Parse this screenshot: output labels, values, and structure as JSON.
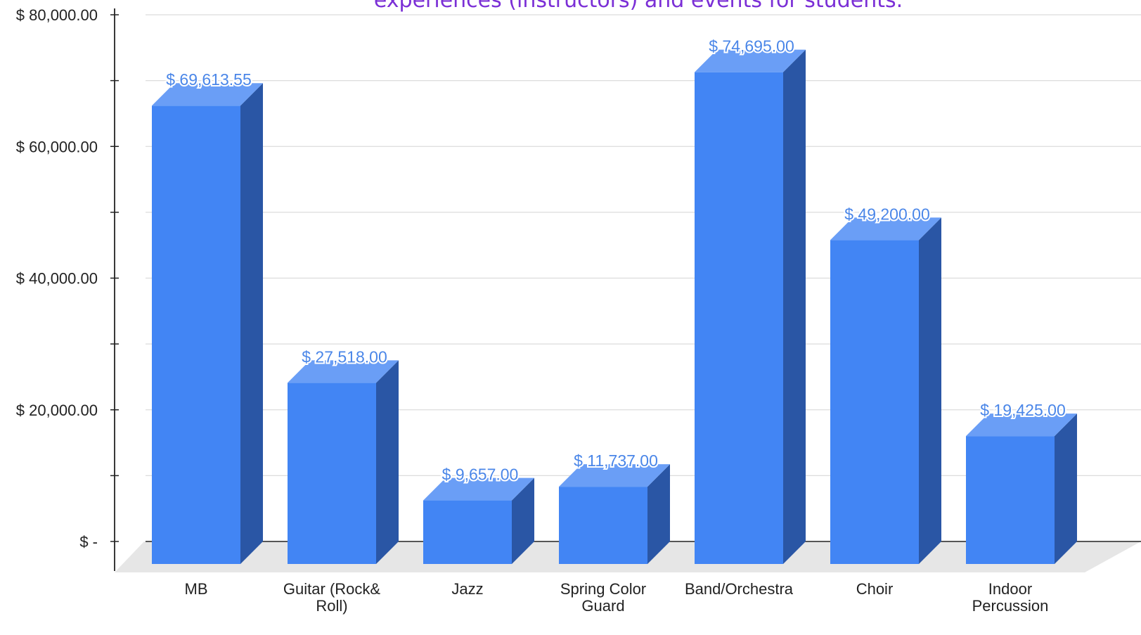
{
  "chart_data": {
    "type": "bar",
    "title": "experiences (instructors) and events for students.",
    "categories": [
      [
        "MB"
      ],
      [
        "Guitar (Rock&",
        "Roll)"
      ],
      [
        "Jazz"
      ],
      [
        "Spring Color",
        "Guard"
      ],
      [
        "Band/Orchestra"
      ],
      [
        "Choir"
      ],
      [
        "Indoor",
        "Percussion"
      ]
    ],
    "values": [
      69613.55,
      27518,
      9657,
      11737,
      74695,
      49200,
      19425
    ],
    "data_labels": [
      "$ 69,613.55",
      "$ 27,518.00",
      "$ 9,657.00",
      "$ 11,737.00",
      "$ 74,695.00",
      "$ 49,200.00",
      "$ 19,425.00"
    ],
    "y_ticks": [
      {
        "value": 0,
        "label": "$ -"
      },
      {
        "value": 20000,
        "label": "$ 20,000.00"
      },
      {
        "value": 40000,
        "label": "$ 40,000.00"
      },
      {
        "value": 60000,
        "label": "$ 60,000.00"
      },
      {
        "value": 80000,
        "label": "$ 80,000.00"
      }
    ],
    "ylim": [
      0,
      80000
    ],
    "xlabel": "",
    "ylabel": "",
    "grid": true,
    "style": "3d-column",
    "colors": {
      "bar_front": "#4285f4",
      "bar_side": "#2a56a5",
      "bar_top": "#6a9ef6",
      "data_label": "#4a86e8",
      "title": "#7b2fd6",
      "floor": "#e6e6e6",
      "grid": "#dcdcdc",
      "axis": "#222222"
    }
  }
}
